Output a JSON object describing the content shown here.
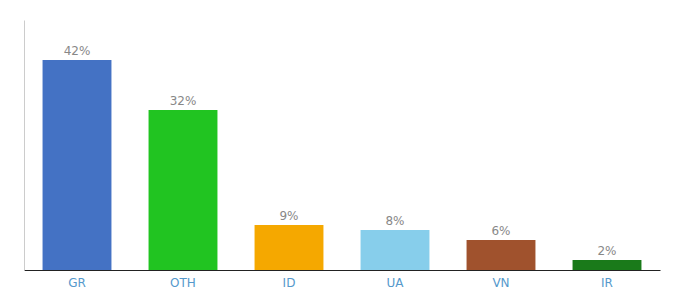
{
  "chart_data": {
    "type": "bar",
    "categories": [
      "GR",
      "OTH",
      "ID",
      "UA",
      "VN",
      "IR"
    ],
    "values": [
      42,
      32,
      9,
      8,
      6,
      2
    ],
    "value_labels": [
      "42%",
      "32%",
      "9%",
      "8%",
      "6%",
      "2%"
    ],
    "colors": [
      "#4472c4",
      "#21c421",
      "#f5a800",
      "#87ceeb",
      "#a0522d",
      "#1a7a1a"
    ],
    "ylim": [
      0,
      50
    ],
    "data_labels": true,
    "tick_labels": "x",
    "grid": false
  }
}
